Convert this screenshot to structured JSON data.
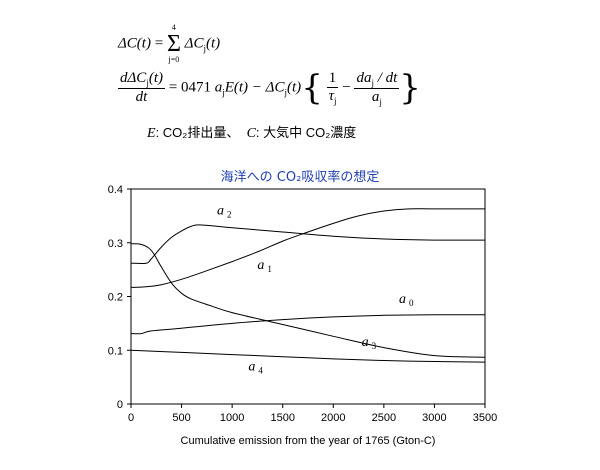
{
  "equations": {
    "eq1": {
      "lhs": "ΔC(t)",
      "equals": "=",
      "sum_upper": "4",
      "sum_lower": "j=0",
      "sum_symbol": "Σ",
      "term": "ΔC",
      "term_sub": "j",
      "term_arg": "(t)"
    },
    "eq2": {
      "num": "dΔC",
      "num_sub": "j",
      "num_arg": "(t)",
      "den": "dt",
      "equals": "= 0471",
      "a": "a",
      "a_sub": "j",
      "e_term": "E(t) − ΔC",
      "c_sub": "j",
      "c_arg": "(t)",
      "brace_open": "{",
      "one": "1",
      "tau": "τ",
      "tau_sub": "j",
      "minus": "−",
      "da_num": "da",
      "da_sub": "j",
      "da_rest": " / dt",
      "da_den": "a",
      "da_den_sub": "j",
      "brace_close": "}"
    },
    "note": {
      "e_symbol": "E",
      "e_text": ": CO₂排出量、",
      "c_symbol": "C",
      "c_text": ": 大気中 CO₂濃度"
    }
  },
  "chart_data": {
    "type": "line",
    "title": "海洋への CO₂吸収率の想定",
    "xlabel": "Cumulative emission from the year of 1765 (Gton-C)",
    "ylabel": "",
    "xlim": [
      0,
      3500
    ],
    "ylim": [
      0,
      0.4
    ],
    "xticks": [
      0,
      500,
      1000,
      1500,
      2000,
      2500,
      3000,
      3500
    ],
    "yticks": [
      0,
      0.1,
      0.2,
      0.3,
      0.4
    ],
    "grid": false,
    "series": [
      {
        "name": "a0",
        "label_base": "a",
        "label_sub": "0",
        "label_at": [
          2650,
          0.188
        ],
        "x": [
          0,
          100,
          200,
          500,
          1000,
          1500,
          2000,
          2500,
          3000,
          3500
        ],
        "y": [
          0.131,
          0.131,
          0.136,
          0.141,
          0.15,
          0.157,
          0.162,
          0.165,
          0.166,
          0.166
        ]
      },
      {
        "name": "a1",
        "label_base": "a",
        "label_sub": "1",
        "label_at": [
          1250,
          0.251
        ],
        "x": [
          0,
          150,
          300,
          500,
          750,
          1000,
          1250,
          1500,
          1750,
          2000,
          2250,
          2500,
          2750,
          3000,
          3500
        ],
        "y": [
          0.217,
          0.218,
          0.222,
          0.232,
          0.248,
          0.265,
          0.283,
          0.303,
          0.32,
          0.336,
          0.35,
          0.359,
          0.363,
          0.363,
          0.363
        ]
      },
      {
        "name": "a2",
        "label_base": "a",
        "label_sub": "2",
        "label_at": [
          850,
          0.353
        ],
        "x": [
          0,
          150,
          200,
          300,
          400,
          500,
          600,
          700,
          1000,
          1500,
          2000,
          2500,
          3000,
          3500
        ],
        "y": [
          0.262,
          0.262,
          0.27,
          0.292,
          0.31,
          0.322,
          0.331,
          0.333,
          0.328,
          0.32,
          0.312,
          0.307,
          0.305,
          0.305
        ]
      },
      {
        "name": "a3",
        "label_base": "a",
        "label_sub": "3",
        "label_at": [
          2280,
          0.108
        ],
        "x": [
          0,
          100,
          200,
          300,
          400,
          500,
          600,
          800,
          1000,
          1500,
          2000,
          2500,
          3000,
          3500
        ],
        "y": [
          0.298,
          0.297,
          0.286,
          0.255,
          0.225,
          0.206,
          0.195,
          0.182,
          0.17,
          0.148,
          0.126,
          0.105,
          0.09,
          0.087
        ]
      },
      {
        "name": "a4",
        "label_base": "a",
        "label_sub": "4",
        "label_at": [
          1160,
          0.062
        ],
        "x": [
          0,
          500,
          1000,
          1500,
          2000,
          2500,
          3000,
          3500
        ],
        "y": [
          0.1,
          0.096,
          0.092,
          0.088,
          0.084,
          0.081,
          0.079,
          0.078
        ]
      }
    ]
  }
}
